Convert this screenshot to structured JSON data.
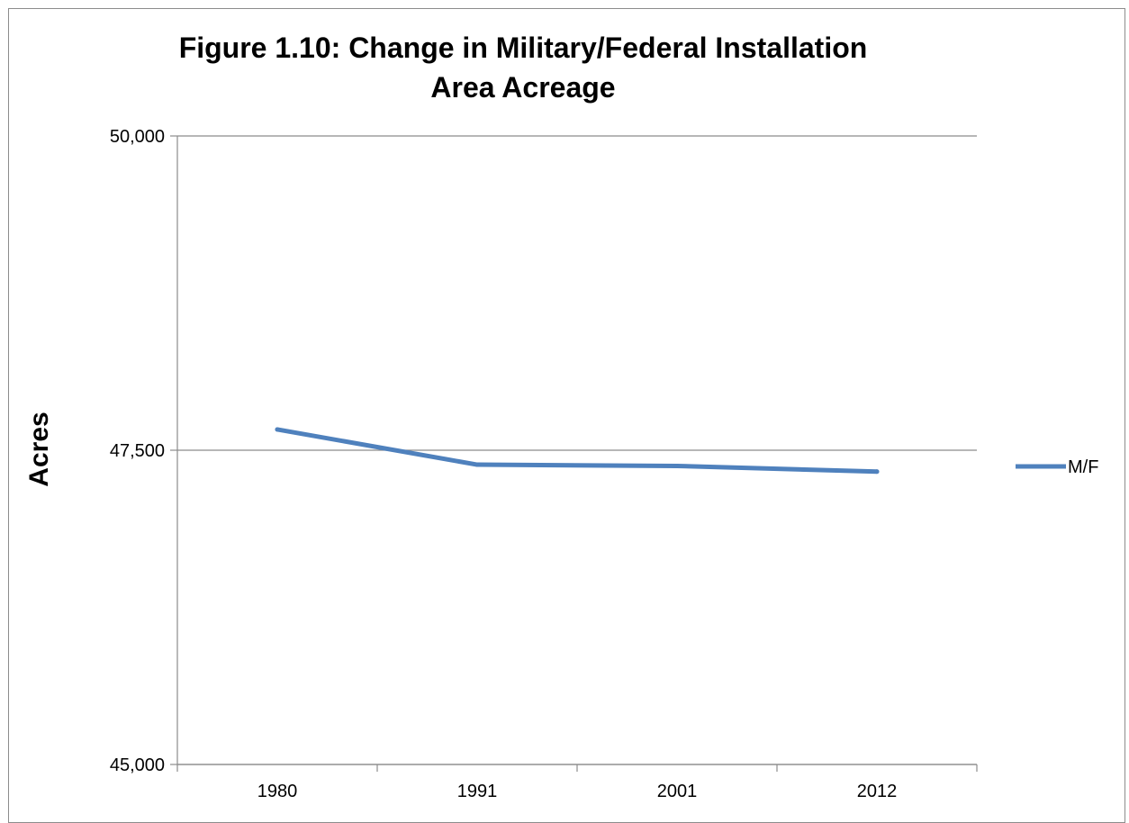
{
  "chart_data": {
    "type": "line",
    "title": [
      "Figure 1.10: Change in Military/Federal Installation",
      "Area Acreage"
    ],
    "xlabel": "",
    "ylabel": "Acres",
    "categories": [
      "1980",
      "1991",
      "2001",
      "2012"
    ],
    "series": [
      {
        "name": "M/F",
        "color": "#4f81bd",
        "values": [
          47665,
          47385,
          47375,
          47330
        ]
      }
    ],
    "ylim": [
      45000,
      50000
    ],
    "y_ticks": [
      45000,
      47500,
      50000
    ],
    "y_tick_labels": [
      "45,000",
      "47,500",
      "50,000"
    ],
    "gridlines": true,
    "legend_position": "right"
  }
}
